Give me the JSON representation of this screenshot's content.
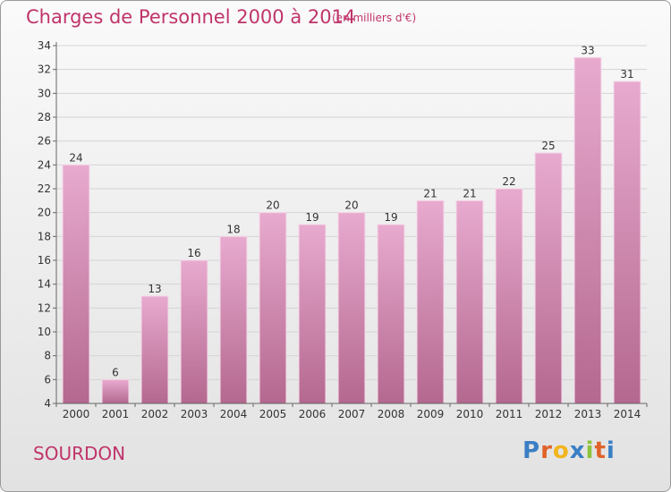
{
  "header": {
    "title": "Charges de Personnel 2000 à 2014",
    "subtitle": "(en milliers d'€)"
  },
  "footer": {
    "city": "SOURDON",
    "logo_text": "Proxiti",
    "logo_colors": [
      "#3a7fc4",
      "#e0632a",
      "#f2b51c",
      "#3a7fc4",
      "#8cc43c",
      "#e0632a",
      "#3a7fc4"
    ]
  },
  "colors": {
    "accent": "#c0346a",
    "bar_top": "#e8aacf",
    "bar_bottom": "#b4688f",
    "axis": "#666666"
  },
  "chart_data": {
    "type": "bar",
    "title": "Charges de Personnel 2000 à 2014",
    "subtitle": "(en milliers d'€)",
    "categories": [
      "2000",
      "2001",
      "2002",
      "2003",
      "2004",
      "2005",
      "2006",
      "2007",
      "2008",
      "2009",
      "2010",
      "2011",
      "2012",
      "2013",
      "2014"
    ],
    "values": [
      24,
      6,
      13,
      16,
      18,
      20,
      19,
      20,
      19,
      21,
      21,
      22,
      25,
      33,
      31
    ],
    "ylim": [
      4,
      34
    ],
    "yticks": [
      4,
      6,
      8,
      10,
      12,
      14,
      16,
      18,
      20,
      22,
      24,
      26,
      28,
      30,
      32,
      34
    ],
    "grid": true,
    "xlabel": "",
    "ylabel": ""
  }
}
